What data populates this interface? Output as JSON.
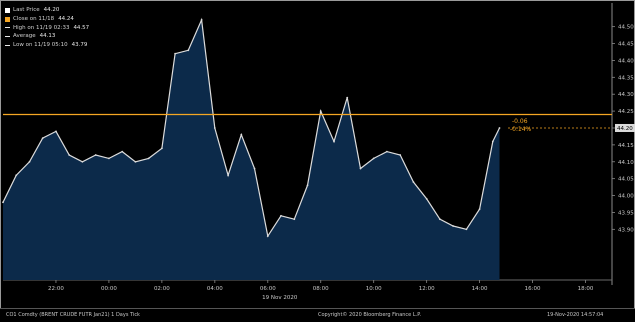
{
  "chart_data": {
    "type": "area",
    "x_tick_labels": [
      "22:00",
      "00:00",
      "02:00",
      "04:00",
      "06:00",
      "08:00",
      "10:00",
      "12:00",
      "14:00",
      "16:00",
      "18:00"
    ],
    "x_date_label": "19 Nov 2020",
    "y_tick_labels": [
      "44.50",
      "44.45",
      "44.40",
      "44.35",
      "44.30",
      "44.25",
      "44.20",
      "44.15",
      "44.10",
      "44.05",
      "44.00",
      "43.95",
      "43.90"
    ],
    "ylim": [
      43.75,
      44.57
    ],
    "series": [
      {
        "name": "Last Price",
        "x": [
          "20:00",
          "20:30",
          "21:00",
          "21:30",
          "22:00",
          "22:30",
          "23:00",
          "23:30",
          "00:00",
          "00:30",
          "01:00",
          "01:30",
          "02:00",
          "02:30",
          "03:00",
          "03:30",
          "04:00",
          "04:30",
          "05:00",
          "05:30",
          "06:00",
          "06:30",
          "07:00",
          "07:30",
          "08:00",
          "08:30",
          "09:00",
          "09:30",
          "10:00",
          "10:30",
          "11:00",
          "11:30",
          "12:00",
          "12:30",
          "13:00",
          "13:30",
          "14:00",
          "14:30",
          "14:45"
        ],
        "values": [
          43.98,
          44.06,
          44.1,
          44.17,
          44.19,
          44.12,
          44.1,
          44.12,
          44.11,
          44.13,
          44.1,
          44.11,
          44.14,
          44.42,
          44.43,
          44.52,
          44.2,
          44.06,
          44.18,
          44.08,
          43.88,
          43.94,
          43.93,
          44.03,
          44.25,
          44.16,
          44.29,
          44.08,
          44.11,
          44.13,
          44.12,
          44.04,
          43.99,
          43.93,
          43.91,
          43.9,
          43.96,
          44.16,
          44.2
        ]
      }
    ],
    "close_on_11_18": 44.24,
    "close_line_color": "#f5a623",
    "area_color": "#0c2a4a",
    "line_color": "#dcdcdc",
    "grid": false,
    "legend_position": "top-left"
  },
  "legend": {
    "items": [
      {
        "label": "Last Price",
        "value": "44.20",
        "color": "#ffffff",
        "kind": "box"
      },
      {
        "label": "Close on 11/18",
        "value": "44.24",
        "color": "#f5a623",
        "kind": "box"
      },
      {
        "label": "High on 11/19 02:33",
        "value": "44.57",
        "color": "#e8e8e8",
        "kind": "line"
      },
      {
        "label": "Average",
        "value": "44.13",
        "color": "#e8e8e8",
        "kind": "line"
      },
      {
        "label": "Low on 11/19 05:10",
        "value": "43.79",
        "color": "#e8e8e8",
        "kind": "line"
      }
    ]
  },
  "annotations": {
    "last_price_box": "44.20",
    "change": "-0.06",
    "change_pct": "-0.14%"
  },
  "footer": {
    "left": "CO1 Comdty (BRENT CRUDE FUTR  Jan21) 1 Days  Tick",
    "center": "Copyright© 2020 Bloomberg Finance L.P.",
    "right": "19-Nov-2020 14:57:04"
  }
}
